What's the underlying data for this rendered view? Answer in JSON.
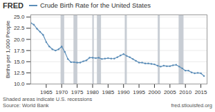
{
  "chart_data": {
    "type": "line",
    "title": "Crude Birth Rate for the United States",
    "y_label": "Births per 1,000 People",
    "annotations": [
      "FRED",
      "Shaded areas indicate U.S. recessions",
      "Source: World Bank",
      "fred.stlouisfed.org"
    ],
    "x": [
      1960,
      1961,
      1962,
      1963,
      1964,
      1965,
      1966,
      1967,
      1968,
      1969,
      1970,
      1971,
      1972,
      1973,
      1974,
      1975,
      1976,
      1977,
      1978,
      1979,
      1980,
      1981,
      1982,
      1983,
      1984,
      1985,
      1986,
      1987,
      1988,
      1989,
      1990,
      1991,
      1992,
      1993,
      1994,
      1995,
      1996,
      1997,
      1998,
      1999,
      2000,
      2001,
      2002,
      2003,
      2004,
      2005,
      2006,
      2007,
      2008,
      2009,
      2010,
      2011,
      2012,
      2013,
      2014,
      2015,
      2016
    ],
    "values": [
      23.7,
      23.3,
      22.4,
      21.7,
      21.0,
      19.4,
      18.4,
      17.8,
      17.5,
      17.8,
      18.4,
      17.2,
      15.6,
      14.9,
      14.9,
      14.8,
      14.8,
      15.1,
      15.3,
      15.9,
      15.9,
      15.8,
      15.9,
      15.6,
      15.7,
      15.8,
      15.7,
      15.7,
      16.0,
      16.4,
      16.7,
      16.3,
      16.0,
      15.6,
      15.2,
      14.8,
      14.8,
      14.6,
      14.6,
      14.5,
      14.4,
      14.1,
      13.9,
      14.1,
      14.0,
      14.0,
      14.2,
      14.3,
      13.9,
      13.5,
      13.0,
      13.0,
      12.6,
      12.4,
      12.5,
      12.4,
      11.8
    ],
    "color": "#5b8db8",
    "marker": "dot",
    "shading": {
      "color": "#c8cdd4",
      "ranges": [
        [
          1969.75,
          1970.92
        ],
        [
          1973.92,
          1975.17
        ],
        [
          1980.0,
          1980.5
        ],
        [
          1981.5,
          1982.83
        ],
        [
          1990.5,
          1991.17
        ],
        [
          2001.17,
          2001.83
        ],
        [
          2007.92,
          2009.5
        ]
      ]
    },
    "xlim": [
      1960,
      2017
    ],
    "xticks": [
      1965,
      1970,
      1975,
      1980,
      1985,
      1990,
      1995,
      2000,
      2005,
      2010,
      2015
    ],
    "ylim": [
      10.0,
      25.5
    ],
    "yticks": [
      {
        "value": 10.0,
        "label": "10.0"
      },
      {
        "value": 12.5,
        "label": "12.5"
      },
      {
        "value": 15.0,
        "label": "15.0"
      },
      {
        "value": 17.5,
        "label": "17.5"
      },
      {
        "value": 20.0,
        "label": "20.0"
      },
      {
        "value": 22.5,
        "label": "22.5"
      },
      {
        "value": 25.0,
        "label": "25.0"
      }
    ],
    "grid": true
  }
}
